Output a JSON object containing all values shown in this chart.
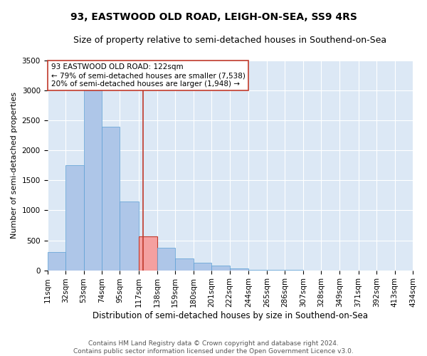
{
  "title": "93, EASTWOOD OLD ROAD, LEIGH-ON-SEA, SS9 4RS",
  "subtitle": "Size of property relative to semi-detached houses in Southend-on-Sea",
  "xlabel": "Distribution of semi-detached houses by size in Southend-on-Sea",
  "ylabel": "Number of semi-detached properties",
  "annotation_line1": "93 EASTWOOD OLD ROAD: 122sqm",
  "annotation_line2": "← 79% of semi-detached houses are smaller (7,538)",
  "annotation_line3": "20% of semi-detached houses are larger (1,948) →",
  "footer1": "Contains HM Land Registry data © Crown copyright and database right 2024.",
  "footer2": "Contains public sector information licensed under the Open Government Licence v3.0.",
  "property_size": 122,
  "bin_edges": [
    11,
    32,
    53,
    74,
    95,
    117,
    138,
    159,
    180,
    201,
    222,
    244,
    265,
    286,
    307,
    328,
    349,
    371,
    392,
    413,
    434
  ],
  "bar_heights": [
    300,
    1750,
    3050,
    2400,
    1150,
    560,
    380,
    200,
    130,
    80,
    30,
    5,
    5,
    2,
    1,
    1,
    0,
    0,
    0,
    0
  ],
  "bar_color": "#aec6e8",
  "bar_edge_color": "#5a9fd4",
  "highlight_color": "#f4a0a0",
  "highlight_edge_color": "#c0392b",
  "vline_color": "#c0392b",
  "annotation_box_color": "#ffffff",
  "annotation_box_edge": "#c0392b",
  "background_color": "#dce8f5",
  "ylim": [
    0,
    3500
  ],
  "title_fontsize": 10,
  "subtitle_fontsize": 9,
  "xlabel_fontsize": 8.5,
  "ylabel_fontsize": 8,
  "tick_fontsize": 7.5,
  "annotation_fontsize": 7.5,
  "footer_fontsize": 6.5
}
